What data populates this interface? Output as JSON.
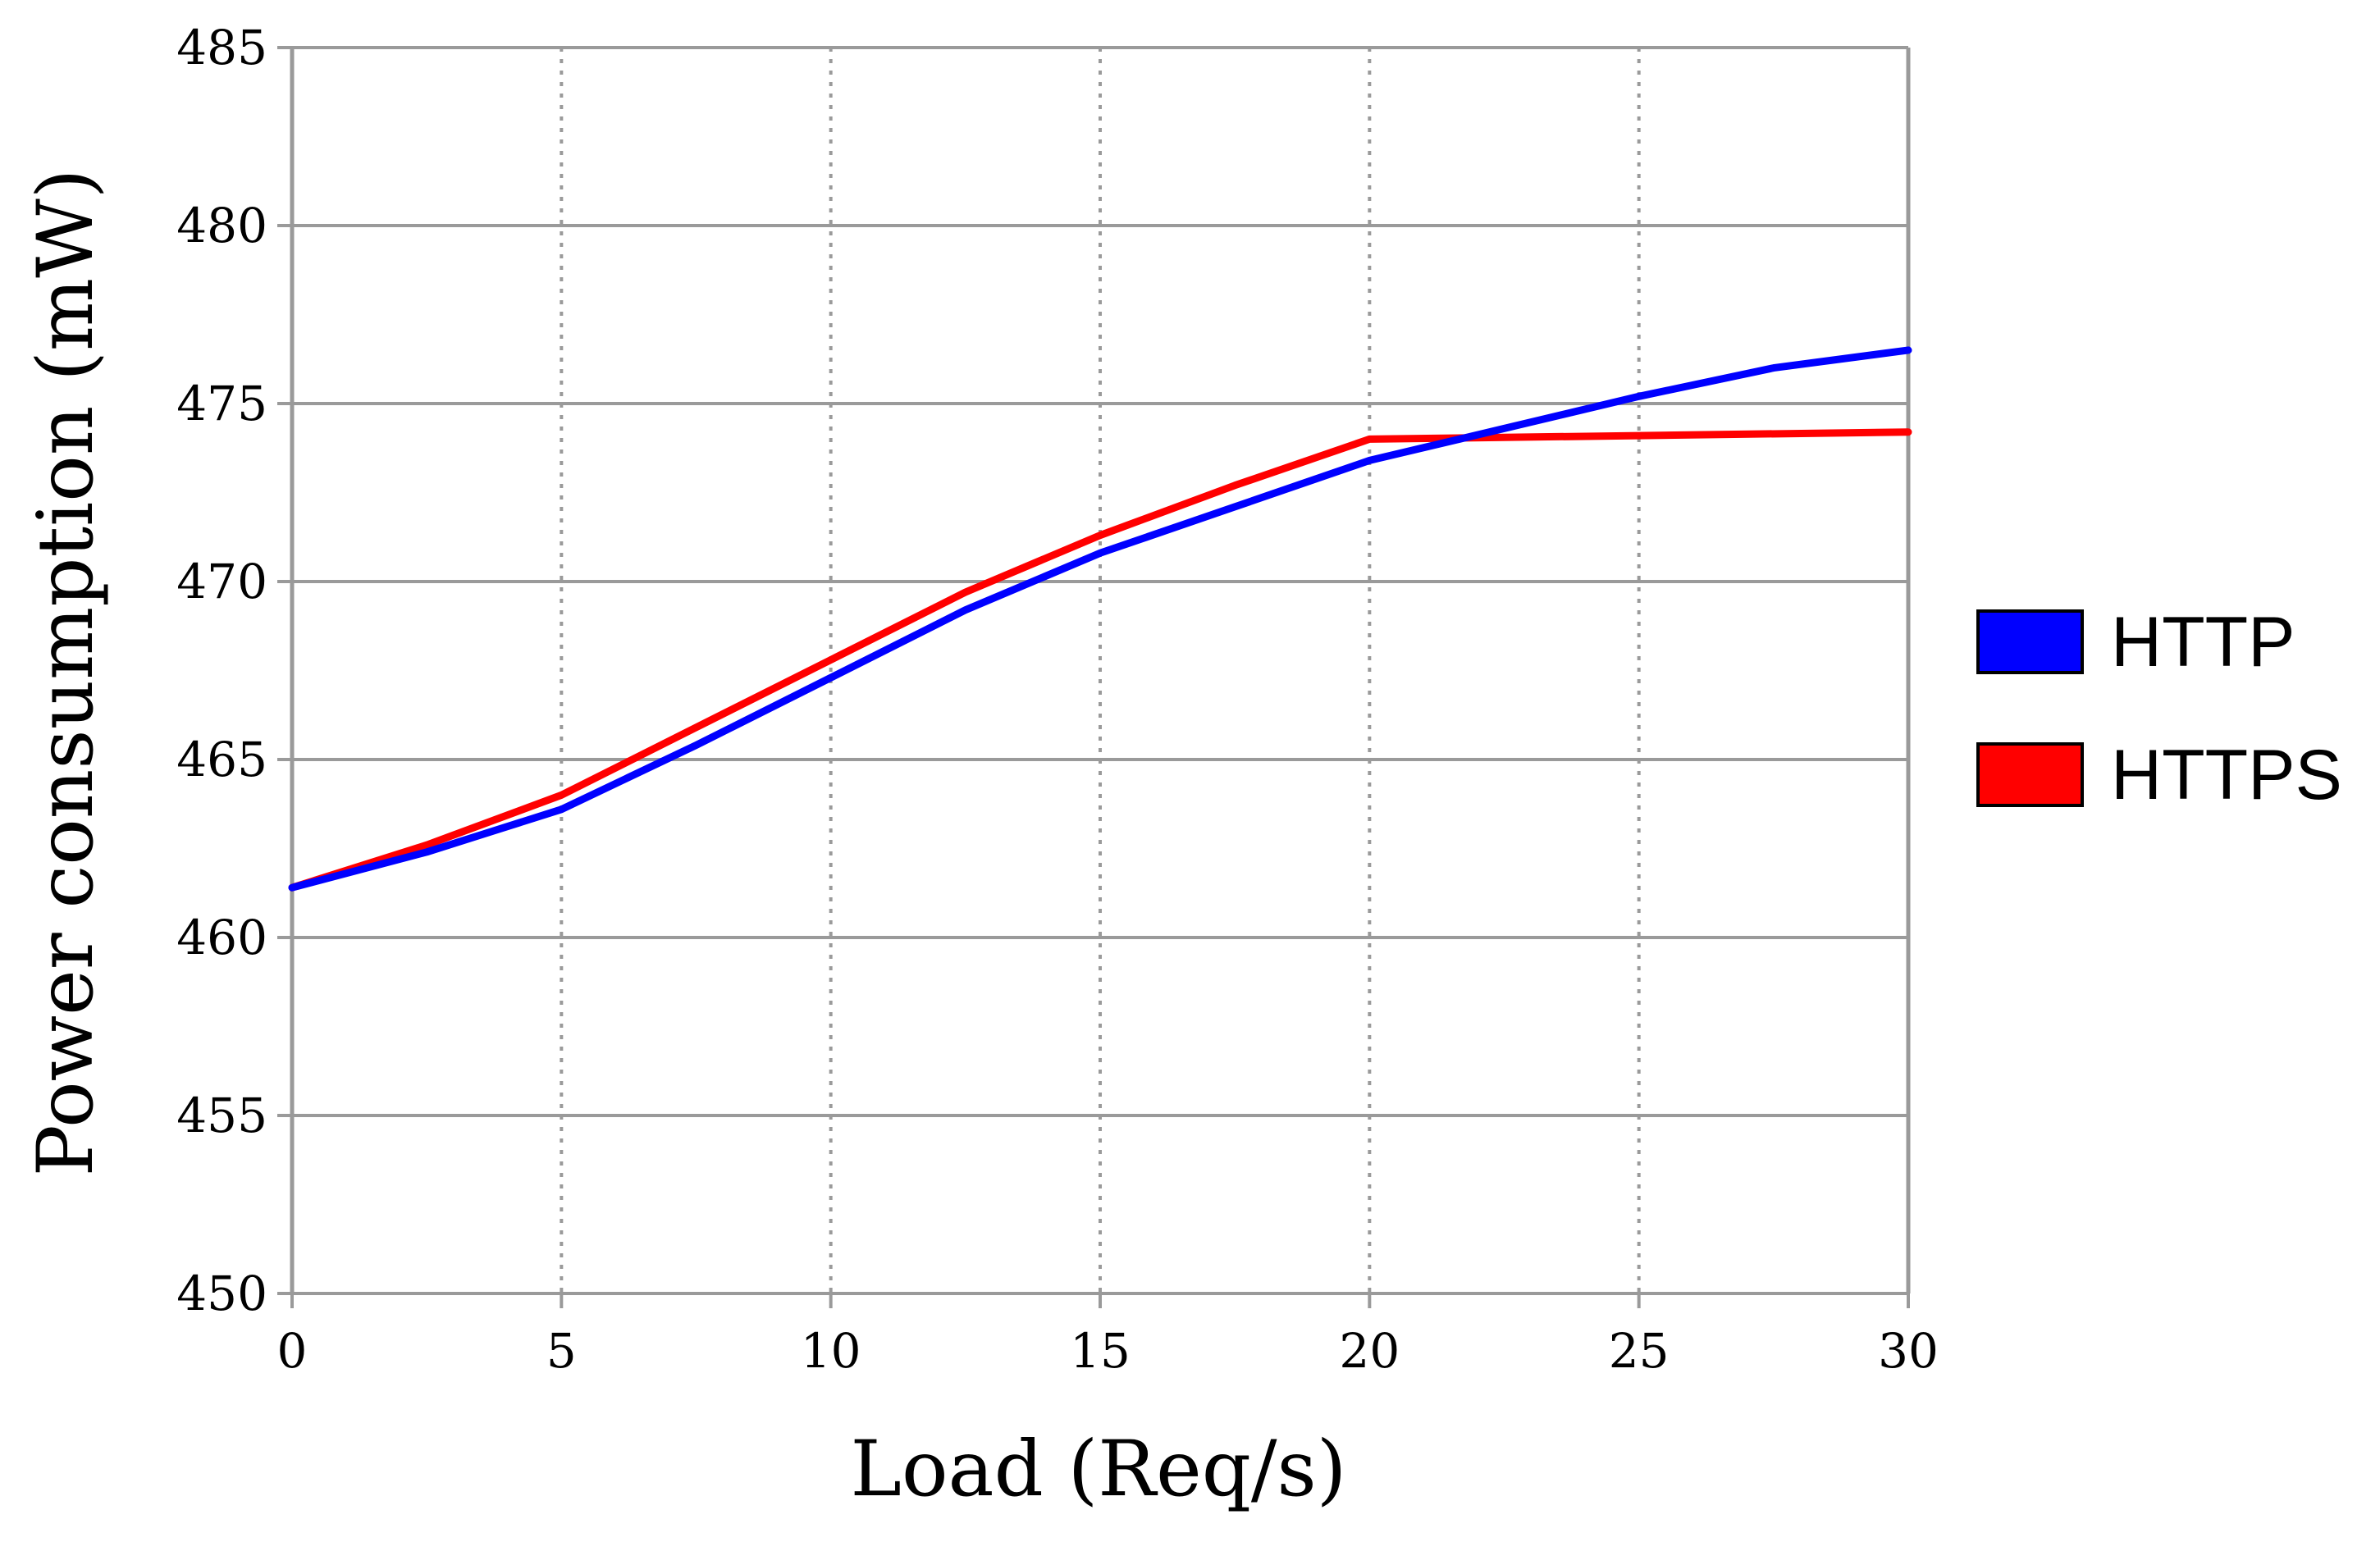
{
  "chart_data": {
    "type": "line",
    "title": "",
    "xlabel": "Load (Req/s)",
    "ylabel": "Power consumption (mW)",
    "xlim": [
      0,
      30
    ],
    "ylim": [
      450,
      485
    ],
    "xticks": [
      0,
      5,
      10,
      15,
      20,
      25,
      30
    ],
    "yticks": [
      450,
      455,
      460,
      465,
      470,
      475,
      480,
      485
    ],
    "grid": {
      "y": "solid",
      "x": "dotted"
    },
    "legend_position": "right",
    "series": [
      {
        "name": "HTTP",
        "color": "#0000ff",
        "x": [
          0,
          2.5,
          5,
          7.5,
          10,
          12.5,
          15,
          17.5,
          20,
          22.5,
          25,
          27.5,
          30
        ],
        "y": [
          461.4,
          462.4,
          463.6,
          465.4,
          467.3,
          469.2,
          470.8,
          472.1,
          473.4,
          474.3,
          475.2,
          476.0,
          476.5
        ]
      },
      {
        "name": "HTTPS",
        "color": "#ff0000",
        "x": [
          0,
          2.5,
          5,
          7.5,
          10,
          12.5,
          15,
          17.5,
          20,
          25,
          30
        ],
        "y": [
          461.4,
          462.6,
          464.0,
          465.9,
          467.8,
          469.7,
          471.3,
          472.7,
          474.0,
          474.1,
          474.2
        ]
      }
    ]
  }
}
